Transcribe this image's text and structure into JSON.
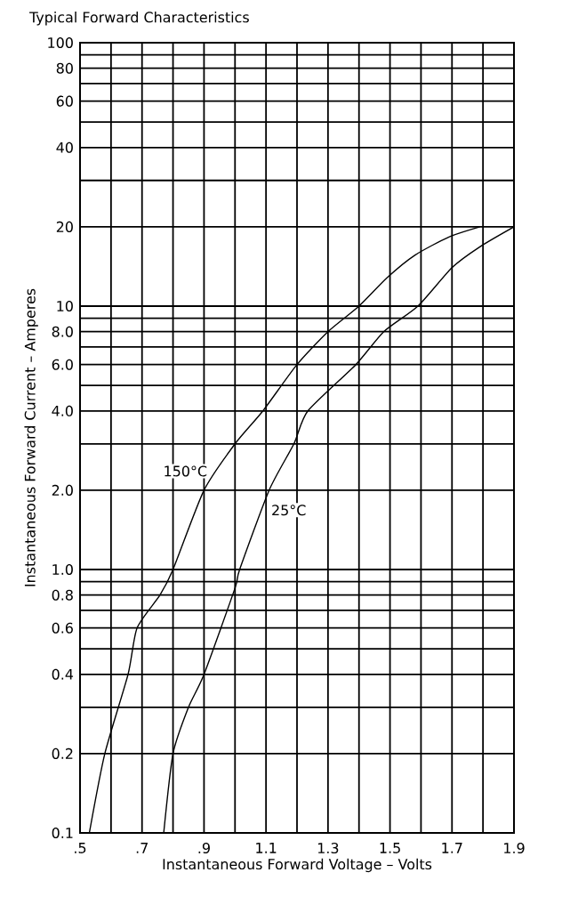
{
  "chart_data": {
    "type": "line",
    "title": "Typical Forward Characteristics",
    "xlabel": "Instantaneous Forward Voltage – Volts",
    "ylabel": "Instantaneous Forward Current – Amperes",
    "log": "y",
    "grid": true,
    "xlim": [
      0.5,
      1.9
    ],
    "ylim": [
      0.1,
      100
    ],
    "xticks": [
      {
        "value": 0.5,
        "label": ".5"
      },
      {
        "value": 0.6,
        "label": null
      },
      {
        "value": 0.7,
        "label": ".7"
      },
      {
        "value": 0.8,
        "label": null
      },
      {
        "value": 0.9,
        "label": ".9"
      },
      {
        "value": 1.0,
        "label": null
      },
      1.1,
      {
        "value": 1.2,
        "label": null
      },
      1.3,
      {
        "value": 1.4,
        "label": null
      },
      1.5,
      {
        "value": 1.6,
        "label": null
      },
      1.7,
      {
        "value": 1.8,
        "label": null
      },
      1.9
    ],
    "yticks": [
      0.1,
      0.2,
      {
        "value": 0.3,
        "label": null
      },
      0.4,
      {
        "value": 0.5,
        "label": null
      },
      0.6,
      {
        "value": 0.7,
        "label": null
      },
      0.8,
      {
        "value": 0.9,
        "label": null
      },
      {
        "value": 1,
        "label": "1.0"
      },
      {
        "value": 2,
        "label": "2.0"
      },
      {
        "value": 3,
        "label": null
      },
      {
        "value": 4,
        "label": "4.0"
      },
      {
        "value": 5,
        "label": null
      },
      {
        "value": 6,
        "label": "6.0"
      },
      {
        "value": 7,
        "label": null
      },
      {
        "value": 8,
        "label": "8.0"
      },
      {
        "value": 9,
        "label": null
      },
      10,
      20,
      {
        "value": 30,
        "label": null
      },
      40,
      {
        "value": 50,
        "label": null
      },
      60,
      {
        "value": 70,
        "label": null
      },
      80,
      {
        "value": 90,
        "label": null
      },
      100
    ],
    "series": [
      {
        "name": "150°C",
        "color": "#000000",
        "x": [
          0.53,
          0.58,
          0.655,
          0.684,
          0.758,
          0.8,
          0.9,
          1.0,
          1.09,
          1.2,
          1.3,
          1.4,
          1.49,
          1.58,
          1.69,
          1.79
        ],
        "values": [
          0.1,
          0.2,
          0.4,
          0.6,
          0.8,
          1.0,
          2.0,
          3.0,
          4.0,
          6.0,
          8.0,
          10,
          12.8,
          15.6,
          18.3,
          20
        ]
      },
      {
        "name": "25°C",
        "color": "#000000",
        "x": [
          0.77,
          0.8,
          0.85,
          0.9,
          1.0,
          1.015,
          1.11,
          1.19,
          1.235,
          1.39,
          1.48,
          1.59,
          1.7,
          1.79,
          1.9
        ],
        "values": [
          0.1,
          0.2,
          0.3,
          0.4,
          0.85,
          1.0,
          2.0,
          3.0,
          4.0,
          6.0,
          8.0,
          10,
          14.0,
          16.8,
          20
        ]
      }
    ]
  }
}
